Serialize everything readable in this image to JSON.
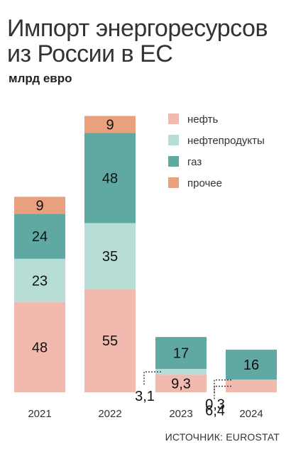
{
  "header": {
    "title_line1": "Импорт энергоресурсов",
    "title_line2": "из России в ЕС",
    "unit": "млрд евро"
  },
  "footer": {
    "source": "ИСТОЧНИК: EUROSTAT"
  },
  "colors": {
    "oil": "#f2b9ae",
    "oil_products": "#b7ddd7",
    "gas": "#5fa9a2",
    "other": "#e9a07d",
    "leader": "#444444"
  },
  "chart_data": {
    "type": "bar",
    "stacked": true,
    "categories": [
      "2021",
      "2022",
      "2023",
      "2024"
    ],
    "series": [
      {
        "name": "нефть",
        "values": [
          48,
          55,
          9.3,
          6.4
        ],
        "labels": [
          "48",
          "55",
          "9,3",
          "6,4"
        ]
      },
      {
        "name": "нефтепродукты",
        "values": [
          23,
          35,
          3.1,
          0.3
        ],
        "labels": [
          "23",
          "35",
          "3,1",
          "0,3"
        ]
      },
      {
        "name": "газ",
        "values": [
          24,
          48,
          17,
          16
        ],
        "labels": [
          "24",
          "48",
          "17",
          "16"
        ]
      },
      {
        "name": "прочее",
        "values": [
          9,
          9,
          null,
          null
        ],
        "labels": [
          "9",
          "9",
          "",
          ""
        ]
      }
    ],
    "legend_position": "top-right",
    "grid": false
  }
}
